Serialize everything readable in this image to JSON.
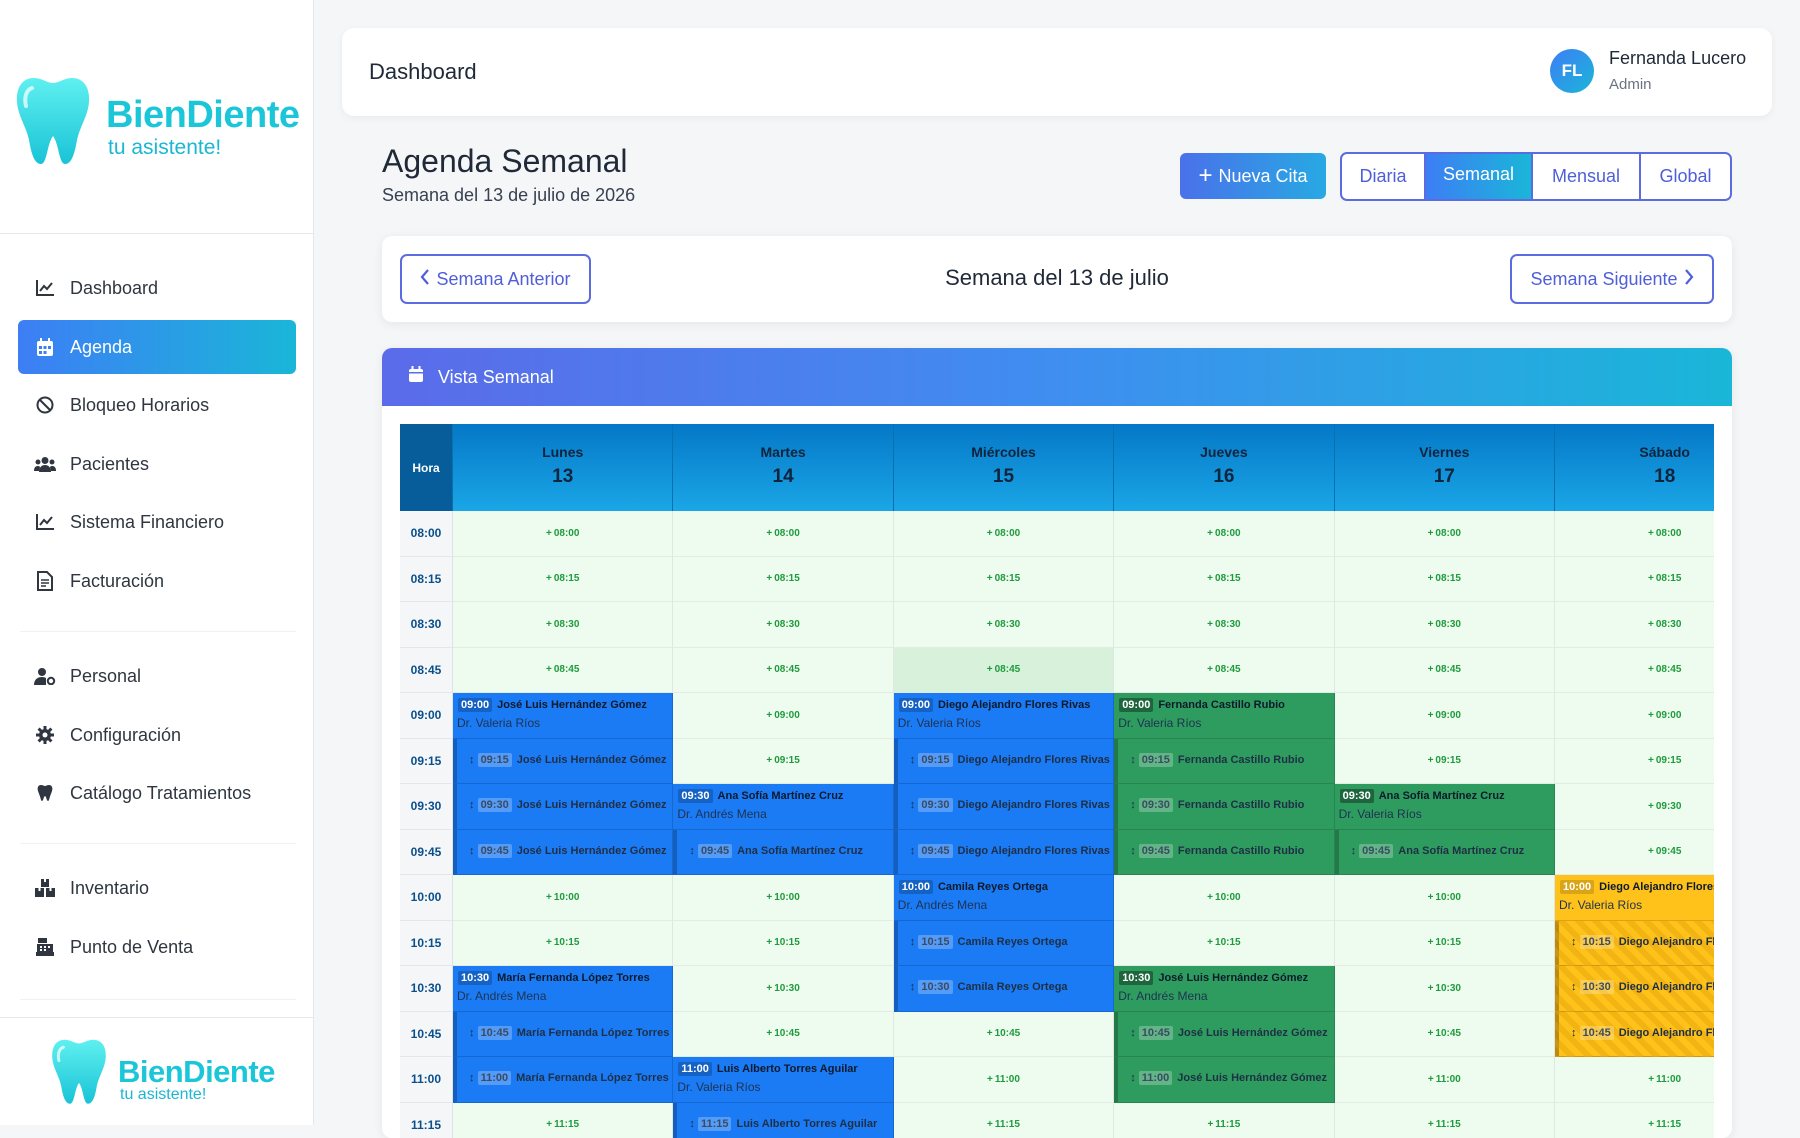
{
  "brand": {
    "name": "BienDiente",
    "tagline": "tu asistente!"
  },
  "sidebar": {
    "items": [
      {
        "label": "Dashboard",
        "icon": "chart-line-icon"
      },
      {
        "label": "Agenda",
        "icon": "calendar-icon"
      },
      {
        "label": "Bloqueo Horarios",
        "icon": "ban-icon"
      },
      {
        "label": "Pacientes",
        "icon": "users-icon"
      },
      {
        "label": "Sistema Financiero",
        "icon": "chart-line-icon"
      },
      {
        "label": "Facturación",
        "icon": "invoice-icon"
      },
      {
        "label": "Personal",
        "icon": "user-gear-icon"
      },
      {
        "label": "Configuración",
        "icon": "gear-icon"
      },
      {
        "label": "Catálogo Tratamientos",
        "icon": "tooth-icon"
      },
      {
        "label": "Inventario",
        "icon": "boxes-icon"
      },
      {
        "label": "Punto de Venta",
        "icon": "cash-register-icon"
      }
    ]
  },
  "header": {
    "title": "Dashboard",
    "user": {
      "initials": "FL",
      "name": "Fernanda Lucero",
      "role": "Admin"
    }
  },
  "agenda": {
    "title": "Agenda Semanal",
    "subtitle": "Semana del 13 de julio de 2026",
    "new_button": "Nueva Cita",
    "views": [
      {
        "label": "Diaria"
      },
      {
        "label": "Semanal"
      },
      {
        "label": "Mensual"
      },
      {
        "label": "Global"
      }
    ],
    "prev": "Semana Anterior",
    "next": "Semana Siguiente",
    "week_label": "Semana del 13 de julio",
    "panel_title": "Vista Semanal"
  },
  "grid": {
    "hora_label": "Hora",
    "days": [
      {
        "name": "Lunes",
        "num": "13"
      },
      {
        "name": "Martes",
        "num": "14"
      },
      {
        "name": "Miércoles",
        "num": "15"
      },
      {
        "name": "Jueves",
        "num": "16"
      },
      {
        "name": "Viernes",
        "num": "17"
      },
      {
        "name": "Sábado",
        "num": "18"
      }
    ],
    "slots": [
      "08:00",
      "08:15",
      "08:30",
      "08:45",
      "09:00",
      "09:15",
      "09:30",
      "09:45",
      "10:00",
      "10:15",
      "10:30",
      "10:45",
      "11:00",
      "11:15"
    ],
    "free_prefix": "+",
    "appointments": [
      {
        "day": 0,
        "slot": 4,
        "color": "blue",
        "time": "09:00",
        "patient": "José Luis Hernández Gómez",
        "doctor": "Dr. Valeria Ríos"
      },
      {
        "day": 0,
        "slot": 5,
        "color": "blue",
        "cont": true,
        "time": "09:15",
        "patient": "José Luis Hernández Gómez"
      },
      {
        "day": 0,
        "slot": 6,
        "color": "blue",
        "cont": true,
        "time": "09:30",
        "patient": "José Luis Hernández Gómez"
      },
      {
        "day": 0,
        "slot": 7,
        "color": "blue",
        "cont": true,
        "time": "09:45",
        "patient": "José Luis Hernández Gómez"
      },
      {
        "day": 0,
        "slot": 10,
        "color": "blue",
        "time": "10:30",
        "patient": "María Fernanda López Torres",
        "doctor": "Dr. Andrés Mena"
      },
      {
        "day": 0,
        "slot": 11,
        "color": "blue",
        "cont": true,
        "time": "10:45",
        "patient": "María Fernanda López Torres"
      },
      {
        "day": 0,
        "slot": 12,
        "color": "blue",
        "cont": true,
        "time": "11:00",
        "patient": "María Fernanda López Torres"
      },
      {
        "day": 1,
        "slot": 6,
        "color": "blue",
        "time": "09:30",
        "patient": "Ana Sofía Martínez Cruz",
        "doctor": "Dr. Andrés Mena"
      },
      {
        "day": 1,
        "slot": 7,
        "color": "blue",
        "cont": true,
        "time": "09:45",
        "patient": "Ana Sofía Martínez Cruz"
      },
      {
        "day": 1,
        "slot": 12,
        "color": "blue",
        "time": "11:00",
        "patient": "Luis Alberto Torres Aguilar",
        "doctor": "Dr. Valeria Ríos"
      },
      {
        "day": 1,
        "slot": 13,
        "color": "blue",
        "cont": true,
        "time": "11:15",
        "patient": "Luis Alberto Torres Aguilar"
      },
      {
        "day": 2,
        "slot": 4,
        "color": "blue",
        "time": "09:00",
        "patient": "Diego Alejandro Flores Rivas",
        "doctor": "Dr. Valeria Ríos"
      },
      {
        "day": 2,
        "slot": 5,
        "color": "blue",
        "cont": true,
        "time": "09:15",
        "patient": "Diego Alejandro Flores Rivas"
      },
      {
        "day": 2,
        "slot": 6,
        "color": "blue",
        "cont": true,
        "time": "09:30",
        "patient": "Diego Alejandro Flores Rivas"
      },
      {
        "day": 2,
        "slot": 7,
        "color": "blue",
        "cont": true,
        "time": "09:45",
        "patient": "Diego Alejandro Flores Rivas"
      },
      {
        "day": 2,
        "slot": 8,
        "color": "blue",
        "time": "10:00",
        "patient": "Camila Reyes Ortega",
        "doctor": "Dr. Andrés Mena"
      },
      {
        "day": 2,
        "slot": 9,
        "color": "blue",
        "cont": true,
        "time": "10:15",
        "patient": "Camila Reyes Ortega"
      },
      {
        "day": 2,
        "slot": 10,
        "color": "blue",
        "cont": true,
        "time": "10:30",
        "patient": "Camila Reyes Ortega"
      },
      {
        "day": 3,
        "slot": 4,
        "color": "green",
        "time": "09:00",
        "patient": "Fernanda Castillo Rubio",
        "doctor": "Dr. Valeria Ríos"
      },
      {
        "day": 3,
        "slot": 5,
        "color": "green",
        "cont": true,
        "time": "09:15",
        "patient": "Fernanda Castillo Rubio"
      },
      {
        "day": 3,
        "slot": 6,
        "color": "green",
        "cont": true,
        "time": "09:30",
        "patient": "Fernanda Castillo Rubio"
      },
      {
        "day": 3,
        "slot": 7,
        "color": "green",
        "cont": true,
        "time": "09:45",
        "patient": "Fernanda Castillo Rubio"
      },
      {
        "day": 3,
        "slot": 10,
        "color": "green",
        "time": "10:30",
        "patient": "José Luis Hernández Gómez",
        "doctor": "Dr. Andrés Mena"
      },
      {
        "day": 3,
        "slot": 11,
        "color": "green",
        "cont": true,
        "time": "10:45",
        "patient": "José Luis Hernández Gómez"
      },
      {
        "day": 3,
        "slot": 12,
        "color": "green",
        "cont": true,
        "time": "11:00",
        "patient": "José Luis Hernández Gómez"
      },
      {
        "day": 4,
        "slot": 6,
        "color": "green",
        "time": "09:30",
        "patient": "Ana Sofía Martínez Cruz",
        "doctor": "Dr. Valeria Ríos"
      },
      {
        "day": 4,
        "slot": 7,
        "color": "green",
        "cont": true,
        "time": "09:45",
        "patient": "Ana Sofía Martínez Cruz"
      },
      {
        "day": 5,
        "slot": 8,
        "color": "yellow",
        "time": "10:00",
        "patient": "Diego Alejandro Flores Rivas",
        "doctor": "Dr. Valeria Ríos"
      },
      {
        "day": 5,
        "slot": 9,
        "color": "yellow",
        "cont": true,
        "time": "10:15",
        "patient": "Diego Alejandro Flores Rivas"
      },
      {
        "day": 5,
        "slot": 10,
        "color": "yellow",
        "cont": true,
        "time": "10:30",
        "patient": "Diego Alejandro Flores Rivas"
      },
      {
        "day": 5,
        "slot": 11,
        "color": "yellow",
        "cont": true,
        "time": "10:45",
        "patient": "Diego Alejandro Flores Rivas"
      }
    ],
    "highlighted": [
      {
        "day": 2,
        "slot": 3
      }
    ]
  }
}
